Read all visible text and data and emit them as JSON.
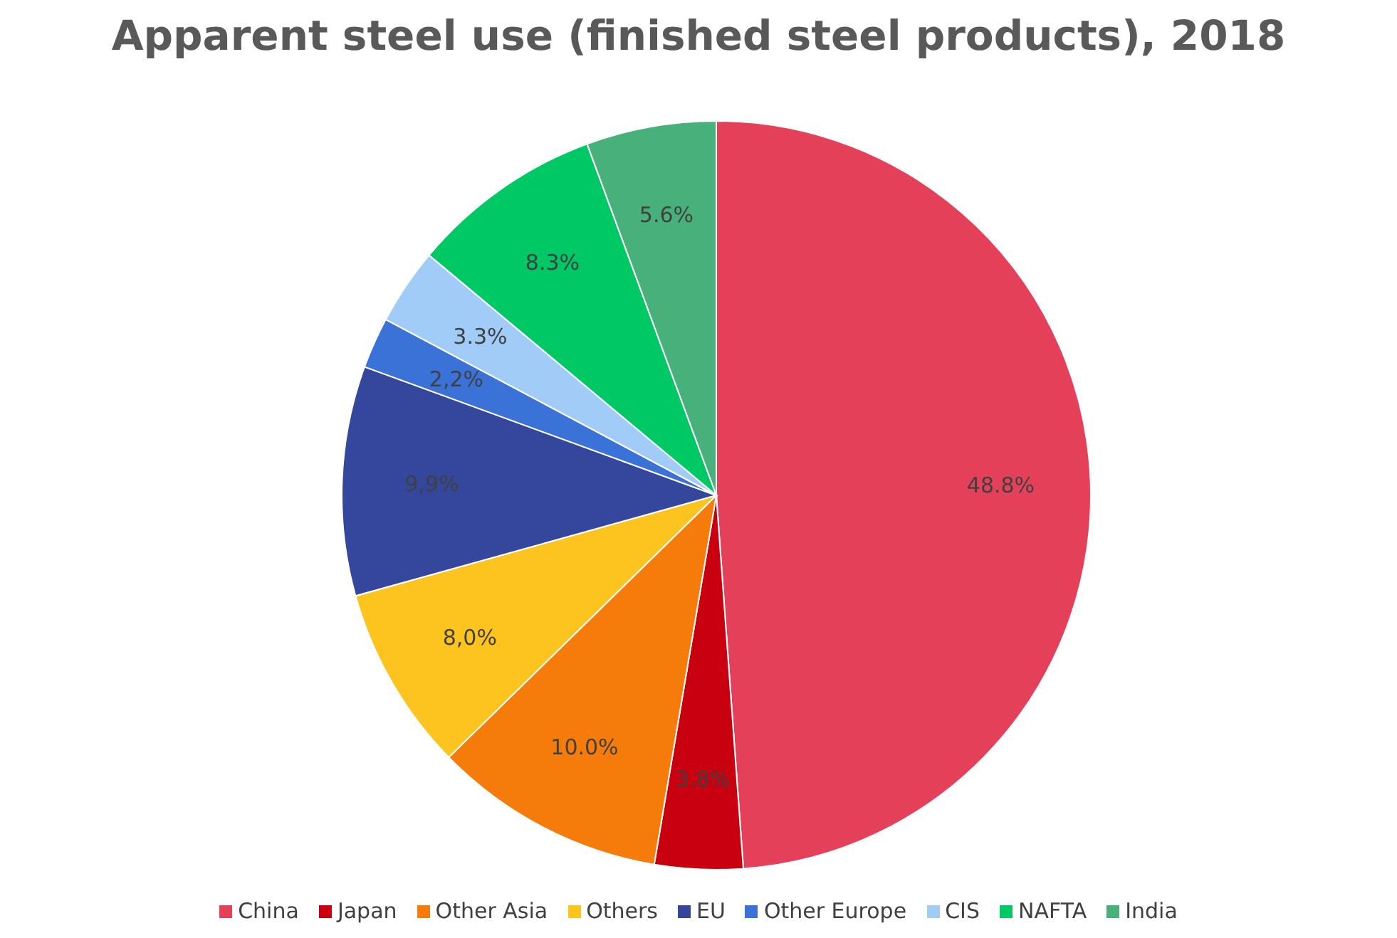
{
  "chart_data": {
    "type": "pie",
    "title": "Apparent steel use (finished steel products), 2018",
    "categories": [
      "China",
      "Japan",
      "Other Asia",
      "Others",
      "EU",
      "Other Europe",
      "CIS",
      "NAFTA",
      "India"
    ],
    "values": [
      48.8,
      3.8,
      10.0,
      8.0,
      9.9,
      2.2,
      3.3,
      8.3,
      5.6
    ],
    "value_labels": [
      "48.8%",
      "3.8%",
      "10.0%",
      "8,0%",
      "9,9%",
      "2,2%",
      "3.3%",
      "8.3%",
      "5.6%"
    ],
    "colors": [
      "#e5405a",
      "#c8000f",
      "#f57c0a",
      "#fdc420",
      "#34479d",
      "#3a72d8",
      "#a2ccf8",
      "#00c864",
      "#48b07a"
    ],
    "legend": "bottom"
  }
}
